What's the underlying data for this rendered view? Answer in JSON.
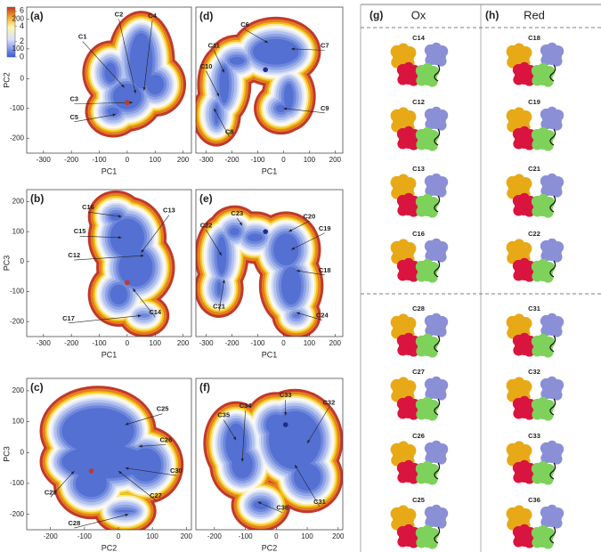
{
  "colorbar": {
    "lim": [
      0,
      6.5
    ],
    "ticks": [
      0,
      2,
      4,
      6
    ]
  },
  "panels": [
    {
      "label": "(a)",
      "xlabel": "PC1",
      "ylabel": "PC2",
      "xlim": [
        -360,
        230
      ],
      "ylim": [
        -250,
        240
      ],
      "xticks": [
        -300,
        -200,
        -100,
        0,
        100,
        200
      ],
      "yticks": [
        -200,
        -100,
        0,
        100,
        200
      ],
      "clusters": [
        "C1",
        "C2",
        "C3",
        "C4",
        "C5"
      ],
      "marker": {
        "x": 0,
        "y": -80,
        "color": "#c0392b"
      }
    },
    {
      "label": "(d)",
      "xlabel": "PC1",
      "xlim": [
        -340,
        230
      ],
      "ylim": [
        -250,
        240
      ],
      "xticks": [
        -300,
        -200,
        -100,
        0,
        100,
        200
      ],
      "clusters": [
        "C6",
        "C7",
        "C11",
        "C10",
        "C8",
        "C9"
      ],
      "marker": {
        "x": -70,
        "y": 30,
        "color": "#1f2d8a"
      }
    },
    {
      "label": "(b)",
      "xlabel": "PC1",
      "ylabel": "PC3",
      "xlim": [
        -360,
        230
      ],
      "ylim": [
        -250,
        240
      ],
      "xticks": [
        -300,
        -200,
        -100,
        0,
        100,
        200
      ],
      "yticks": [
        -200,
        -100,
        0,
        100,
        200
      ],
      "clusters": [
        "C16",
        "C13",
        "C15",
        "C12",
        "C14",
        "C17"
      ],
      "marker": {
        "x": 0,
        "y": -70,
        "color": "#c0392b"
      }
    },
    {
      "label": "(e)",
      "xlabel": "PC1",
      "xlim": [
        -340,
        230
      ],
      "ylim": [
        -250,
        240
      ],
      "xticks": [
        -300,
        -200,
        -100,
        0,
        100,
        200
      ],
      "clusters": [
        "C22",
        "C23",
        "C20",
        "C19",
        "C18",
        "C21",
        "C24"
      ],
      "marker": {
        "x": -70,
        "y": 100,
        "color": "#1f2d8a"
      }
    },
    {
      "label": "(c)",
      "xlabel": "PC2",
      "ylabel": "PC3",
      "xlim": [
        -270,
        215
      ],
      "ylim": [
        -250,
        240
      ],
      "xticks": [
        -200,
        -100,
        0,
        100,
        200
      ],
      "yticks": [
        -200,
        -100,
        0,
        100,
        200
      ],
      "clusters": [
        "C25",
        "C26",
        "C30",
        "C27",
        "C29",
        "C28"
      ],
      "marker": {
        "x": -80,
        "y": -60,
        "color": "#c0392b"
      }
    },
    {
      "label": "(f)",
      "xlabel": "PC2",
      "xlim": [
        -260,
        215
      ],
      "ylim": [
        -250,
        240
      ],
      "xticks": [
        -200,
        -100,
        0,
        100,
        200
      ],
      "clusters": [
        "C35",
        "C34",
        "C33",
        "C32",
        "C31",
        "C36"
      ],
      "marker": {
        "x": 30,
        "y": 90,
        "color": "#1f2d8a"
      }
    }
  ],
  "structures": {
    "headers": [
      {
        "label": "(g)",
        "title": "Ox"
      },
      {
        "label": "(h)",
        "title": "Red"
      }
    ],
    "rows": [
      [
        "C14",
        "C18"
      ],
      [
        "C12",
        "C19"
      ],
      [
        "C13",
        "C21"
      ],
      [
        "C16",
        "C22"
      ],
      [
        "C28",
        "C31"
      ],
      [
        "C27",
        "C32"
      ],
      [
        "C26",
        "C33"
      ],
      [
        "C25",
        "C36"
      ]
    ]
  }
}
